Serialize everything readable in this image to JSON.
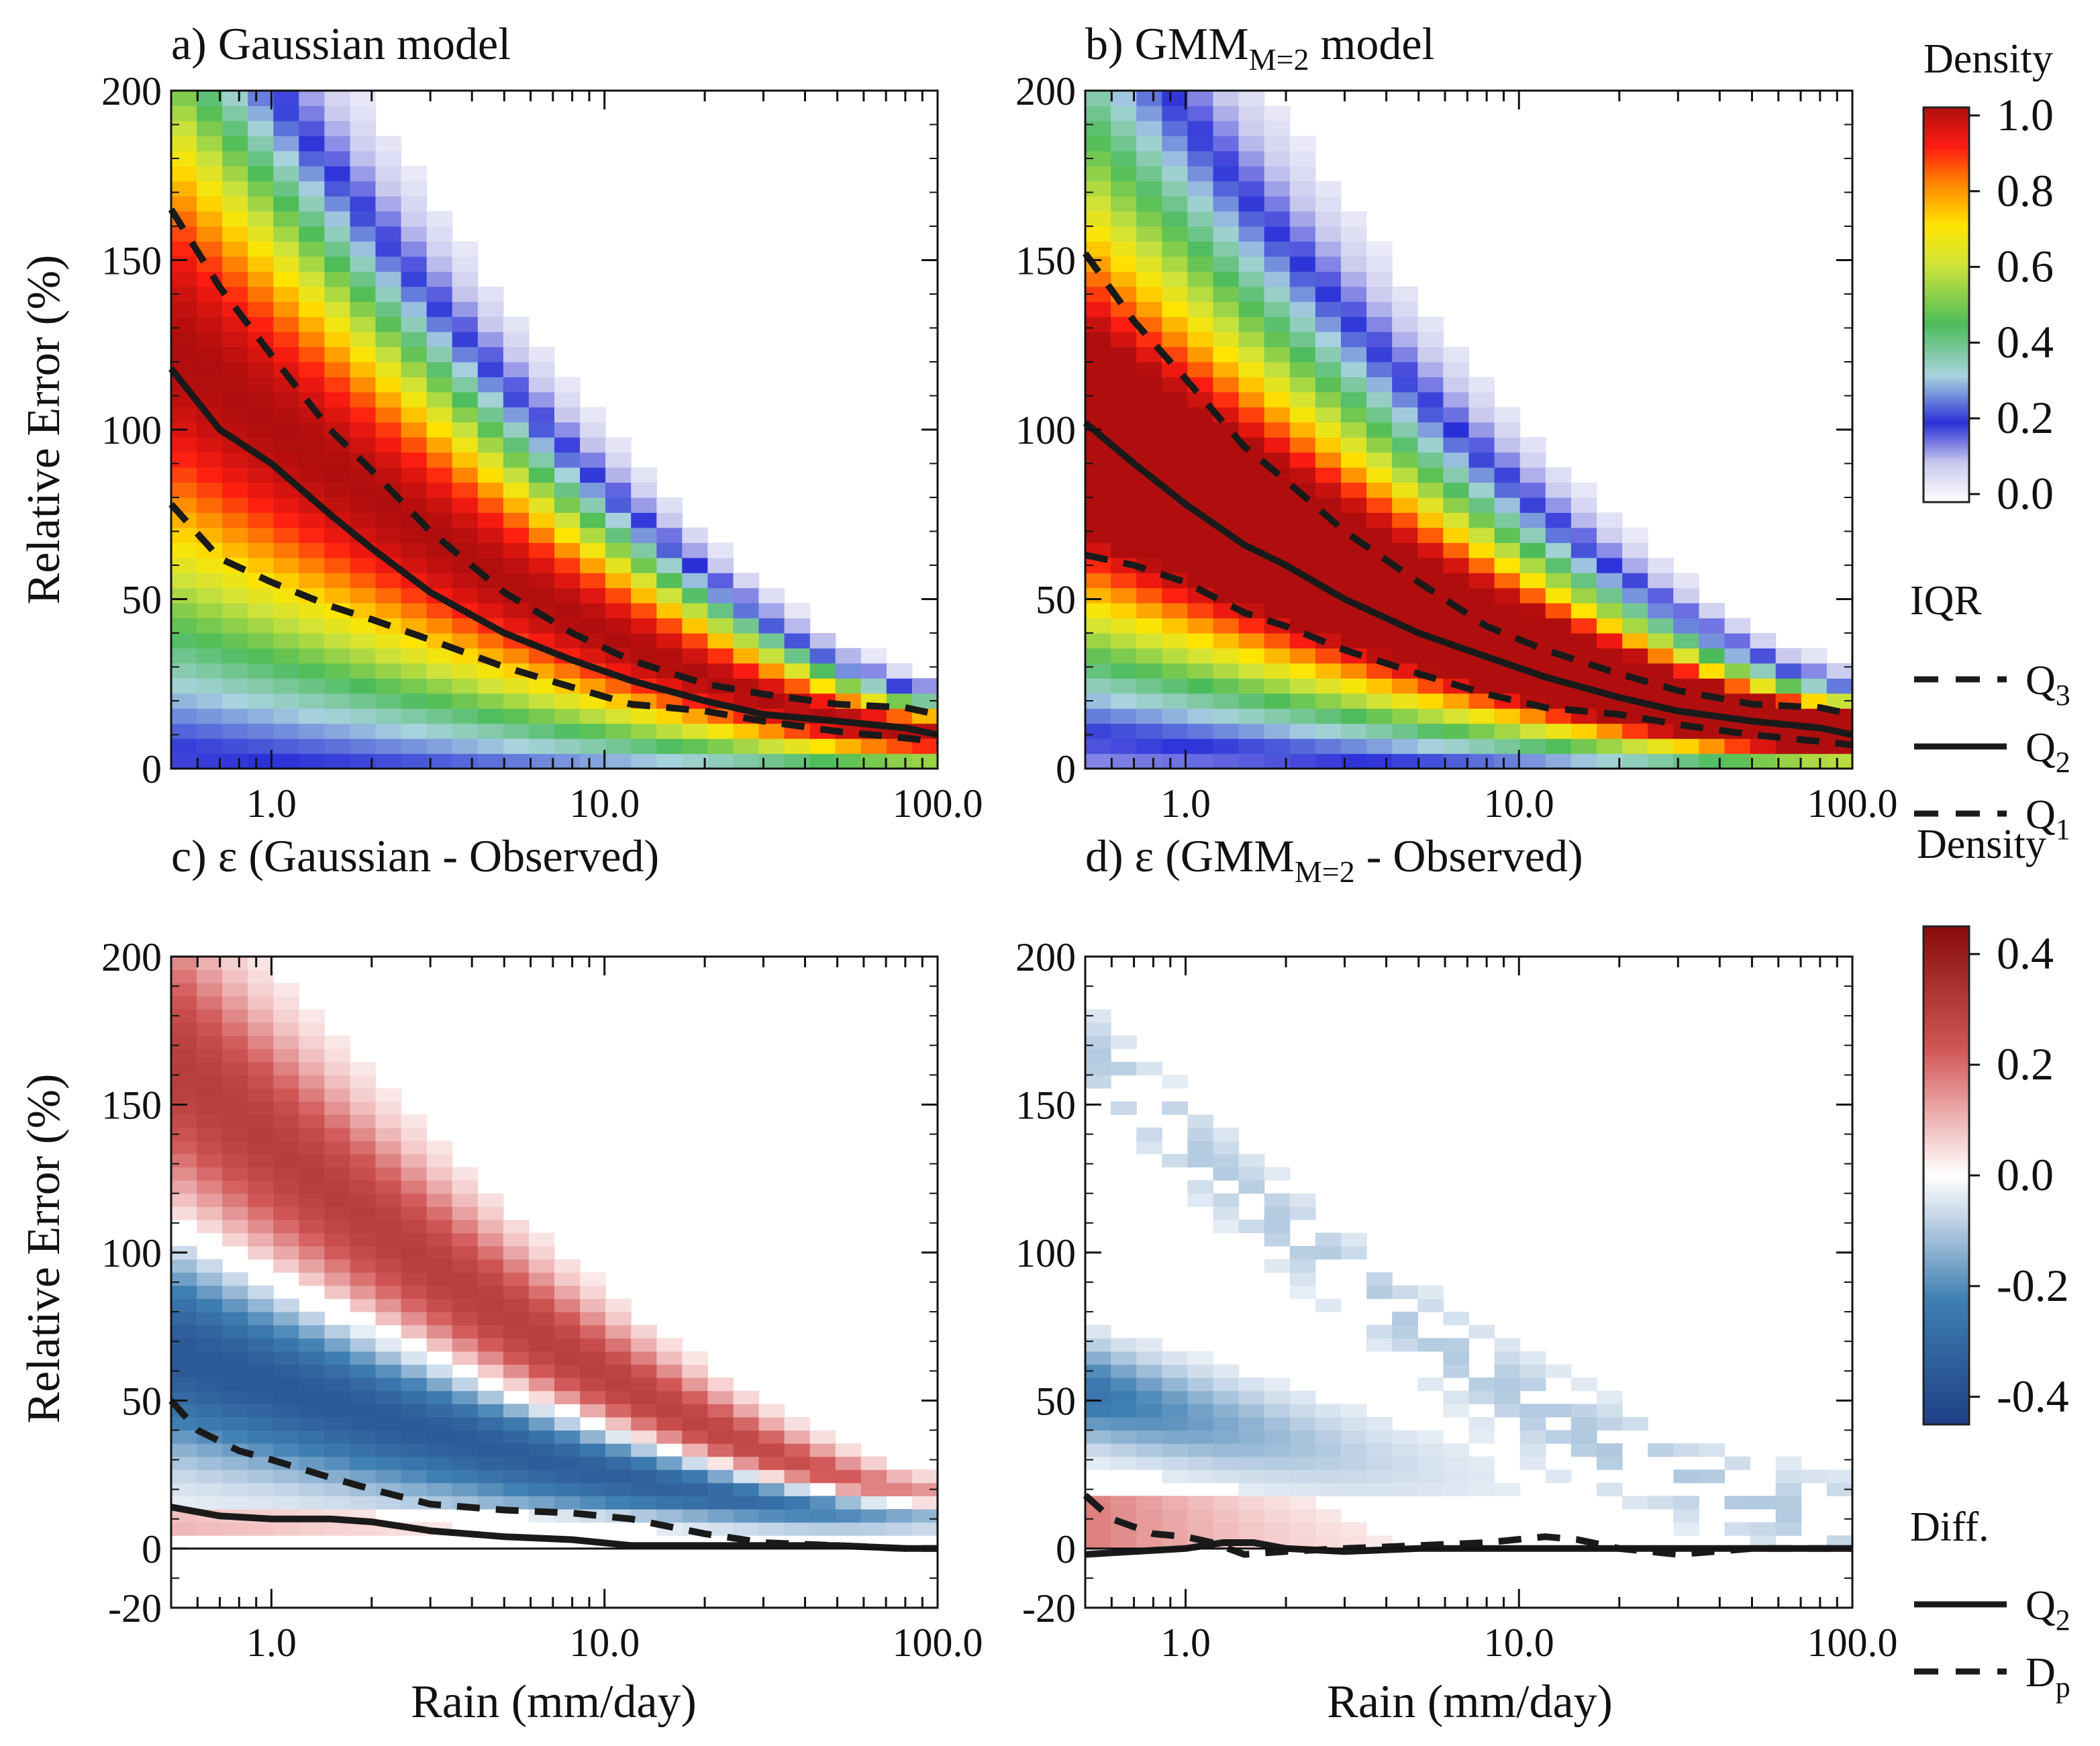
{
  "figure": {
    "ylabel": "Relative Error (%)",
    "xlabel": "Rain (mm/day)"
  },
  "chart_data": [
    {
      "type": "heatmap",
      "panel": "a",
      "title": "a) Gaussian model",
      "x_scale": "log",
      "xlim": [
        0.5,
        100
      ],
      "ylim": [
        0,
        200
      ],
      "x_ticks": [
        "1.0",
        "10.0",
        "100.0"
      ],
      "y_ticks": [
        "0",
        "50",
        "100",
        "150",
        "200"
      ],
      "colorbar": "density",
      "density_model": "gaussian",
      "series": [
        {
          "name": "Q3",
          "style": "dashed",
          "x": [
            0.5,
            0.7,
            1,
            1.5,
            2,
            3,
            5,
            8,
            12,
            20,
            30,
            50,
            80,
            100
          ],
          "y": [
            165,
            142,
            122,
            100,
            88,
            70,
            52,
            40,
            32,
            25,
            22,
            19,
            18,
            16
          ]
        },
        {
          "name": "Q2",
          "style": "solid",
          "x": [
            0.5,
            0.7,
            1,
            1.5,
            2,
            3,
            5,
            8,
            12,
            20,
            30,
            50,
            80,
            100
          ],
          "y": [
            118,
            100,
            90,
            75,
            65,
            52,
            40,
            32,
            26,
            20,
            16,
            14,
            12,
            10
          ]
        },
        {
          "name": "Q1",
          "style": "dashed",
          "x": [
            0.5,
            0.7,
            1,
            1.5,
            2,
            3,
            5,
            8,
            12,
            20,
            30,
            50,
            80,
            100
          ],
          "y": [
            78,
            62,
            55,
            48,
            44,
            38,
            30,
            24,
            19,
            17,
            14,
            11,
            9,
            8
          ]
        }
      ]
    },
    {
      "type": "heatmap",
      "panel": "b",
      "title_prefix": "b) GMM",
      "title_sub": "M=2",
      "title_suffix": " model",
      "x_scale": "log",
      "xlim": [
        0.5,
        100
      ],
      "ylim": [
        0,
        200
      ],
      "x_ticks": [
        "1.0",
        "10.0",
        "100.0"
      ],
      "y_ticks": [
        "0",
        "50",
        "100",
        "150",
        "200"
      ],
      "colorbar": "density",
      "density_model": "gmm",
      "series": [
        {
          "name": "Q3",
          "style": "dashed",
          "x": [
            0.5,
            0.7,
            1,
            1.5,
            2,
            3,
            5,
            8,
            12,
            20,
            30,
            50,
            80,
            100
          ],
          "y": [
            152,
            132,
            115,
            95,
            85,
            70,
            55,
            42,
            35,
            28,
            23,
            19,
            18,
            16
          ]
        },
        {
          "name": "Q2",
          "style": "solid",
          "x": [
            0.5,
            0.7,
            1,
            1.5,
            2,
            3,
            5,
            8,
            12,
            20,
            30,
            50,
            80,
            100
          ],
          "y": [
            102,
            90,
            78,
            66,
            60,
            50,
            40,
            33,
            27,
            21,
            17,
            14,
            12,
            10
          ]
        },
        {
          "name": "Q1",
          "style": "dashed",
          "x": [
            0.5,
            0.7,
            1,
            1.5,
            2,
            3,
            5,
            8,
            12,
            20,
            30,
            50,
            80,
            100
          ],
          "y": [
            63,
            60,
            55,
            46,
            42,
            35,
            28,
            22,
            18,
            16,
            13,
            10,
            8,
            7
          ]
        }
      ]
    },
    {
      "type": "heatmap",
      "panel": "c",
      "title": "c) ε (Gaussian - Observed)",
      "x_scale": "log",
      "xlim": [
        0.5,
        100
      ],
      "ylim": [
        -20,
        200
      ],
      "x_ticks": [
        "1.0",
        "10.0",
        "100.0"
      ],
      "y_ticks": [
        "-20",
        "0",
        "50",
        "100",
        "150",
        "200"
      ],
      "colorbar": "difference",
      "diff_model": "gaussian",
      "series": [
        {
          "name": "Q2",
          "style": "solid",
          "x": [
            0.5,
            0.7,
            1,
            1.5,
            2,
            3,
            5,
            8,
            12,
            20,
            30,
            50,
            80,
            100
          ],
          "y": [
            14,
            11,
            10,
            10,
            9,
            6,
            4,
            3,
            1,
            1,
            1,
            1,
            0,
            0
          ]
        },
        {
          "name": "Dp",
          "style": "dashed",
          "x": [
            0.5,
            0.6,
            0.8,
            1,
            1.5,
            2,
            3,
            5,
            8,
            12,
            20,
            30,
            50,
            80,
            100
          ],
          "y": [
            50,
            40,
            33,
            30,
            24,
            20,
            15,
            13,
            12,
            10,
            5,
            2,
            1,
            0,
            0
          ]
        }
      ]
    },
    {
      "type": "heatmap",
      "panel": "d",
      "title_prefix": "d) ε (GMM",
      "title_sub": "M=2",
      "title_suffix": " - Observed)",
      "x_scale": "log",
      "xlim": [
        0.5,
        100
      ],
      "ylim": [
        -20,
        200
      ],
      "x_ticks": [
        "1.0",
        "10.0",
        "100.0"
      ],
      "y_ticks": [
        "-20",
        "0",
        "50",
        "100",
        "150",
        "200"
      ],
      "colorbar": "difference",
      "diff_model": "gmm",
      "series": [
        {
          "name": "Q2",
          "style": "solid",
          "x": [
            0.5,
            0.7,
            1,
            1.3,
            1.6,
            2,
            3,
            5,
            8,
            12,
            20,
            30,
            50,
            80,
            100
          ],
          "y": [
            -2,
            -1,
            0,
            2,
            2,
            0,
            -1,
            0,
            0,
            0,
            0,
            0,
            0,
            0,
            0
          ]
        },
        {
          "name": "Dp",
          "style": "dashed",
          "x": [
            0.5,
            0.6,
            0.8,
            1,
            1.2,
            1.5,
            2,
            3,
            5,
            8,
            12,
            15,
            20,
            30,
            50,
            80,
            100
          ],
          "y": [
            18,
            10,
            5,
            4,
            2,
            -2,
            -1,
            0,
            1,
            2,
            4,
            3,
            0,
            -2,
            0,
            0,
            0
          ]
        }
      ]
    }
  ],
  "colorbar_density": {
    "label": "Density",
    "ticks": [
      "1.0",
      "0.8",
      "0.6",
      "0.4",
      "0.2",
      "0.0"
    ],
    "range": [
      0.0,
      1.0
    ]
  },
  "colorbar_difference": {
    "label": "Density",
    "ticks": [
      "0.4",
      "0.2",
      "0.0",
      "-0.2",
      "-0.4"
    ],
    "range": [
      -0.45,
      0.45
    ]
  },
  "legend_iqr": {
    "title": "IQR",
    "items": [
      {
        "label": "Q",
        "sub": "3",
        "style": "dashed"
      },
      {
        "label": "Q",
        "sub": "2",
        "style": "solid"
      },
      {
        "label": "Q",
        "sub": "1",
        "style": "dashed"
      }
    ]
  },
  "legend_diff": {
    "title": "Diff.",
    "items": [
      {
        "label": "Q",
        "sub": "2",
        "style": "solid"
      },
      {
        "label": "D",
        "sub": "p",
        "style": "dashed"
      }
    ]
  }
}
